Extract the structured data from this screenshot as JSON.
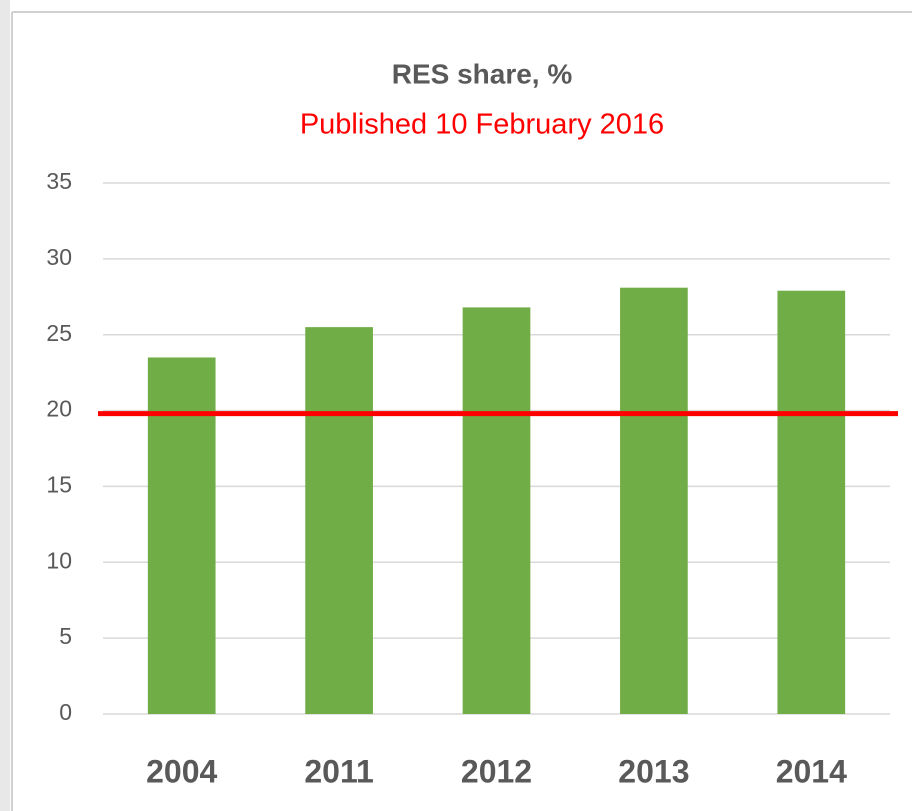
{
  "chart_data": {
    "type": "bar",
    "title": "RES share, %",
    "subtitle": "Published 10 February 2016",
    "categories": [
      "2004",
      "2011",
      "2012",
      "2013",
      "2014"
    ],
    "values": [
      23.5,
      25.5,
      26.8,
      28.1,
      27.9
    ],
    "color": "#70ad47",
    "ylim": [
      0,
      35
    ],
    "yticks": [
      0,
      5,
      10,
      15,
      20,
      25,
      30,
      35
    ],
    "grid": true,
    "reference_line": {
      "value": 19.8,
      "color": "#ff0000"
    }
  }
}
